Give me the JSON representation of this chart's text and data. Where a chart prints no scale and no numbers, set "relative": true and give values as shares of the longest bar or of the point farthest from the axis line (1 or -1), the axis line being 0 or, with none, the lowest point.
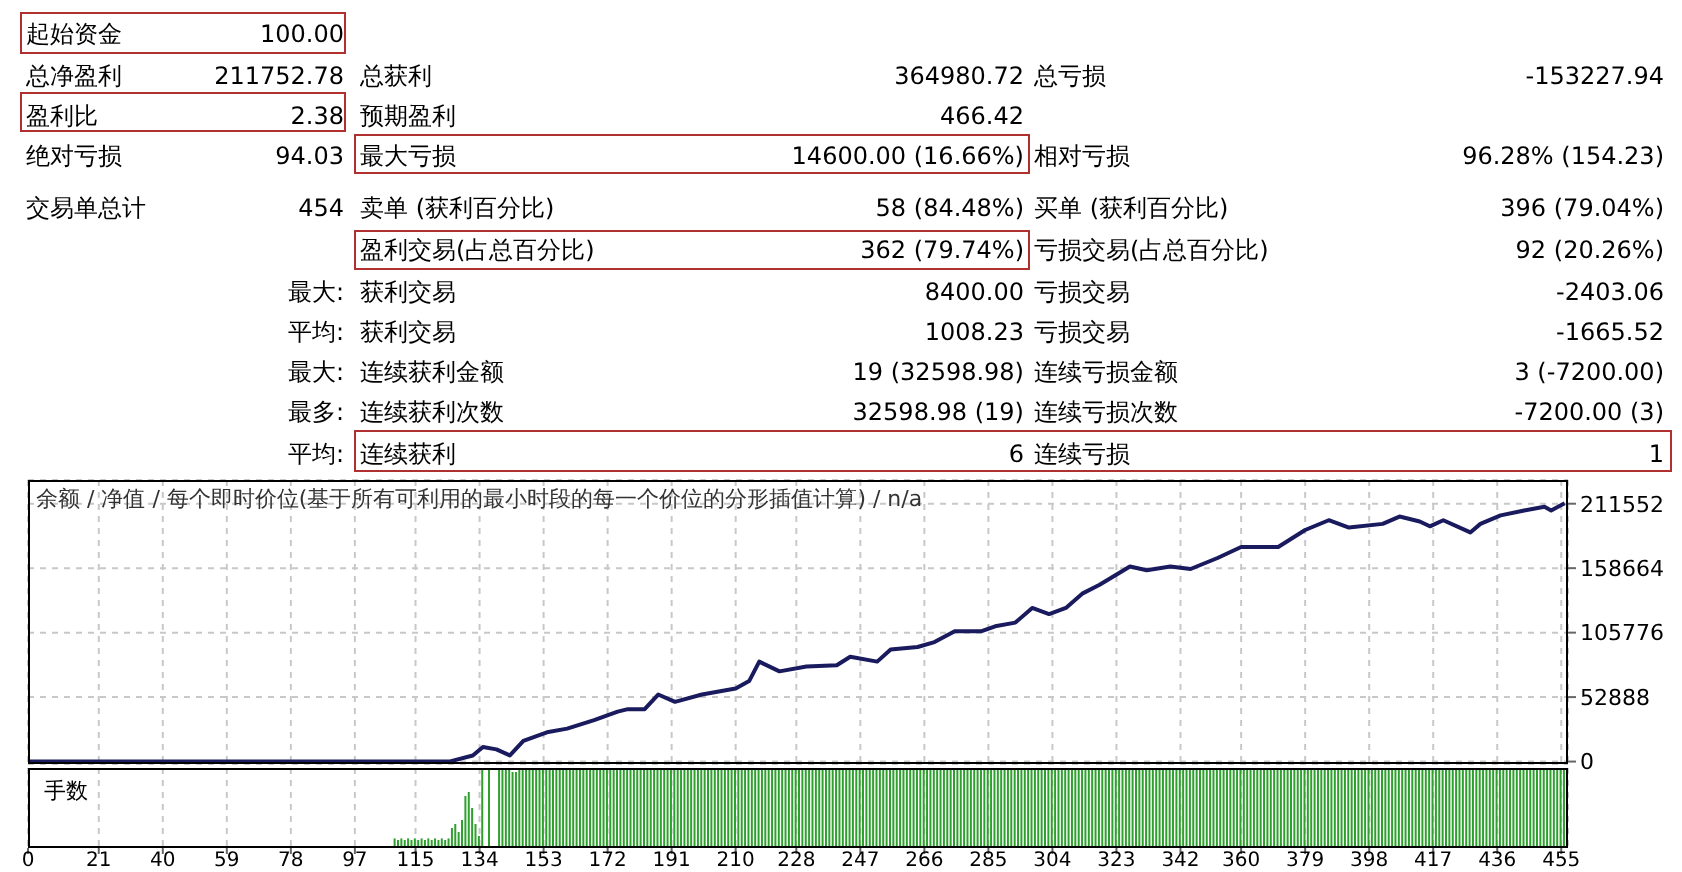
{
  "chart_data": [
    {
      "type": "other",
      "annotations": [
        "起始资金",
        "100.00",
        "总净盈利",
        "211752.78",
        "总获利",
        "364980.72",
        "总亏损",
        "-153227.94",
        "盈利比",
        "2.38",
        "预期盈利",
        "466.42",
        "绝对亏损",
        "94.03",
        "最大亏损",
        "14600.00 (16.66%)",
        "相对亏损",
        "96.28% (154.23)",
        "交易单总计",
        "454",
        "卖单 (获利百分比)",
        "58 (84.48%)",
        "买单 (获利百分比)",
        "396 (79.04%)",
        "盈利交易(占总百分比)",
        "362 (79.74%)",
        "亏损交易(占总百分比)",
        "92 (20.26%)",
        "最大:",
        "获利交易",
        "8400.00",
        "亏损交易",
        "-2403.06",
        "平均:",
        "获利交易",
        "1008.23",
        "亏损交易",
        "-1665.52",
        "最大:",
        "连续获利金额",
        "19 (32598.98)",
        "连续亏损金额",
        "3 (-7200.00)",
        "最多:",
        "连续获利次数",
        "32598.98 (19)",
        "连续亏损次数",
        "-7200.00 (3)",
        "平均:",
        "连续获利",
        "6",
        "连续亏损",
        "1"
      ]
    },
    {
      "type": "line",
      "title": "余额 / 净值 / 每个即时价位(基于所有可利用的最小时段的每一个价位的分形插值计算) / n/a",
      "grid": true,
      "marker": "none",
      "line_style": "solid",
      "tick_labels": "y",
      "xlim": [
        0,
        457
      ],
      "xticks": [
        0,
        21,
        40,
        59,
        78,
        97,
        115,
        134,
        153,
        172,
        191,
        210,
        228,
        247,
        266,
        285,
        304,
        323,
        342,
        360,
        379,
        398,
        417,
        436,
        455
      ],
      "ylim": [
        -2000,
        231000
      ],
      "yticks": [
        0,
        52888,
        105776,
        158664,
        211552
      ],
      "x": [
        0,
        125,
        132,
        135,
        139,
        143,
        147,
        154,
        160,
        168,
        175,
        178,
        183,
        187,
        192,
        200,
        210,
        214,
        217,
        223,
        231,
        240,
        244,
        252,
        256,
        264,
        269,
        275,
        283,
        287,
        293,
        298,
        303,
        308,
        313,
        318,
        327,
        332,
        339,
        345,
        353,
        360,
        371,
        379,
        386,
        392,
        402,
        407,
        413,
        416,
        420,
        428,
        431,
        437,
        444,
        450,
        452,
        456
      ],
      "series": [
        {
          "color": "#1a1a5e",
          "values": [
            0,
            0,
            5000,
            12000,
            10000,
            5000,
            17000,
            24000,
            27000,
            34000,
            41000,
            43000,
            43000,
            55000,
            49000,
            55000,
            60000,
            66000,
            82000,
            74000,
            78000,
            79000,
            86000,
            82000,
            92000,
            94000,
            98000,
            107000,
            107000,
            111000,
            114000,
            126000,
            121000,
            126000,
            138000,
            145000,
            160000,
            157000,
            160000,
            158000,
            167000,
            176000,
            176000,
            190000,
            198000,
            192000,
            195000,
            201000,
            197000,
            193000,
            198000,
            188000,
            195000,
            202000,
            206000,
            209000,
            206000,
            212000
          ]
        }
      ]
    },
    {
      "type": "bar",
      "title": "手数",
      "relative": true,
      "grid": "x",
      "tick_labels": "x",
      "color": "#2ea02e",
      "xlim": [
        0,
        457
      ],
      "xticks": [
        0,
        21,
        40,
        59,
        78,
        97,
        115,
        134,
        153,
        172,
        191,
        210,
        228,
        247,
        266,
        285,
        304,
        323,
        342,
        360,
        379,
        398,
        417,
        436,
        455
      ],
      "x": [
        109,
        110,
        111,
        112,
        113,
        114,
        115,
        116,
        117,
        118,
        119,
        120,
        121,
        122,
        123,
        124,
        125,
        126,
        127,
        128,
        129,
        130,
        131,
        132,
        133,
        134,
        135,
        136,
        137,
        138,
        139,
        140,
        141,
        142,
        143,
        144,
        145,
        146,
        147,
        148,
        149,
        150,
        151,
        152,
        153,
        154,
        155,
        156,
        157,
        158,
        159,
        160,
        161,
        162,
        163,
        164,
        165,
        166,
        167,
        168,
        169,
        170,
        171,
        172,
        173,
        174,
        175,
        176,
        177,
        178,
        179,
        180,
        181,
        182,
        183,
        184,
        185,
        186,
        187,
        188,
        189,
        190,
        191,
        192,
        193,
        194,
        195,
        196,
        197,
        198,
        199,
        200,
        201,
        202,
        203,
        204,
        205,
        206,
        207,
        208,
        209,
        210,
        211,
        212,
        213,
        214,
        215,
        216,
        217,
        218,
        219,
        220,
        221,
        222,
        223,
        224,
        225,
        226,
        227,
        228,
        229,
        230,
        231,
        232,
        233,
        234,
        235,
        236,
        237,
        238,
        239,
        240,
        241,
        242,
        243,
        244,
        245,
        246,
        247,
        248,
        249,
        250,
        251,
        252,
        253,
        254,
        255,
        256,
        257,
        258,
        259,
        260,
        261,
        262,
        263,
        264,
        265,
        266,
        267,
        268,
        269,
        270,
        271,
        272,
        273,
        274,
        275,
        276,
        277,
        278,
        279,
        280,
        281,
        282,
        283,
        284,
        285,
        286,
        287,
        288,
        289,
        290,
        291,
        292,
        293,
        294,
        295,
        296,
        297,
        298,
        299,
        300,
        301,
        302,
        303,
        304,
        305,
        306,
        307,
        308,
        309,
        310,
        311,
        312,
        313,
        314,
        315,
        316,
        317,
        318,
        319,
        320,
        321,
        322,
        323,
        324,
        325,
        326,
        327,
        328,
        329,
        330,
        331,
        332,
        333,
        334,
        335,
        336,
        337,
        338,
        339,
        340,
        341,
        342,
        343,
        344,
        345,
        346,
        347,
        348,
        349,
        350,
        351,
        352,
        353,
        354,
        355,
        356,
        357,
        358,
        359,
        360,
        361,
        362,
        363,
        364,
        365,
        366,
        367,
        368,
        369,
        370,
        371,
        372,
        373,
        374,
        375,
        376,
        377,
        378,
        379,
        380,
        381,
        382,
        383,
        384,
        385,
        386,
        387,
        388,
        389,
        390,
        391,
        392,
        393,
        394,
        395,
        396,
        397,
        398,
        399,
        400,
        401,
        402,
        403,
        404,
        405,
        406,
        407,
        408,
        409,
        410,
        411,
        412,
        413,
        414,
        415,
        416,
        417,
        418,
        419,
        420,
        421,
        422,
        423,
        424,
        425,
        426,
        427,
        428,
        429,
        430,
        431,
        432,
        433,
        434,
        435,
        436,
        437,
        438,
        439,
        440,
        441,
        442,
        443,
        444,
        445,
        446,
        447,
        448,
        449,
        450,
        451,
        452,
        453,
        454,
        455,
        456
      ],
      "values": [
        0.12,
        0.1,
        0.12,
        0.1,
        0.12,
        0.1,
        0.12,
        0.1,
        0.12,
        0.1,
        0.12,
        0.1,
        0.12,
        0.1,
        0.12,
        0.1,
        0.12,
        0.25,
        0.3,
        0.2,
        0.35,
        0.65,
        0.7,
        0.5,
        0.3,
        0.15,
        1,
        null,
        1,
        null,
        null,
        1,
        1,
        1,
        1,
        0.95,
        0.95,
        1,
        1,
        1,
        1,
        1,
        1,
        1,
        1,
        1,
        1,
        1,
        1,
        1,
        1,
        1,
        1,
        1,
        1,
        1,
        1,
        1,
        1,
        1,
        1,
        1,
        1,
        1,
        1,
        1,
        1,
        1,
        1,
        1,
        1,
        1,
        1,
        1,
        1,
        1,
        1,
        1,
        1,
        1,
        1,
        1,
        1,
        1,
        1,
        1,
        1,
        1,
        1,
        1,
        1,
        1,
        1,
        1,
        1,
        1,
        1,
        1,
        1,
        1,
        1,
        1,
        1,
        1,
        1,
        1,
        1,
        1,
        1,
        1,
        1,
        1,
        1,
        1,
        1,
        1,
        1,
        1,
        1,
        1,
        1,
        1,
        1,
        1,
        1,
        1,
        1,
        1,
        1,
        1,
        1,
        1,
        1,
        1,
        1,
        1,
        1,
        1,
        1,
        1,
        1,
        1,
        1,
        1,
        1,
        1,
        1,
        1,
        1,
        1,
        1,
        1,
        1,
        1,
        1,
        1,
        1,
        1,
        1,
        1,
        1,
        1,
        1,
        1,
        1,
        1,
        1,
        1,
        1,
        1,
        1,
        1,
        1,
        1,
        1,
        1,
        1,
        1,
        1,
        1,
        1,
        1,
        1,
        1,
        1,
        1,
        1,
        1,
        1,
        1,
        1,
        1,
        1,
        1,
        1,
        1,
        1,
        1,
        1,
        1,
        1,
        1,
        1,
        1,
        1,
        1,
        1,
        1,
        1,
        1,
        1,
        1,
        1,
        1,
        1,
        1,
        1,
        1,
        1,
        1,
        1,
        1,
        1,
        1,
        1,
        1,
        1,
        1,
        1,
        1,
        1,
        1,
        1,
        1,
        1,
        1,
        1,
        1,
        1,
        1,
        1,
        1,
        1,
        1,
        1,
        1,
        1,
        1,
        1,
        1,
        1,
        1,
        1,
        1,
        1,
        1,
        1,
        1,
        1,
        1,
        1,
        1,
        1,
        1,
        1,
        1,
        1,
        1,
        1,
        1,
        1,
        1,
        1,
        1,
        1,
        1,
        1,
        1,
        1,
        1,
        1,
        1,
        1,
        1,
        1,
        1,
        1,
        1,
        1,
        1,
        1,
        1,
        1,
        1,
        1,
        1,
        1,
        1,
        1,
        1,
        1,
        1,
        1,
        1,
        1,
        1,
        1,
        1,
        1,
        1,
        1,
        1,
        1,
        1,
        1,
        1,
        1,
        1,
        1,
        1,
        1,
        1,
        1,
        1,
        1,
        1,
        1,
        1,
        1,
        1,
        1,
        1,
        1,
        1,
        1,
        1,
        1,
        1,
        1,
        1,
        1,
        1,
        1,
        1,
        1,
        1,
        1,
        1
      ]
    }
  ]
}
